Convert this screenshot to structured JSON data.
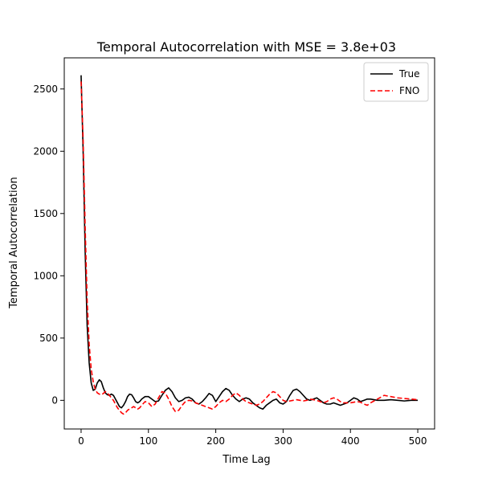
{
  "chart_data": {
    "type": "line",
    "title": "Temporal Autocorrelation with MSE = 3.8e+03",
    "xlabel": "Time Lag",
    "ylabel": "Temporal Autocorrelation",
    "xlim": [
      -25,
      525
    ],
    "ylim": [
      -230,
      2750
    ],
    "xticks": [
      0,
      100,
      200,
      300,
      400,
      500
    ],
    "yticks": [
      0,
      500,
      1000,
      1500,
      2000,
      2500
    ],
    "grid": false,
    "legend_position": "top-right",
    "series": [
      {
        "name": "True",
        "color": "#000000",
        "dash": "solid",
        "x": [
          0,
          3,
          6,
          9,
          12,
          15,
          18,
          21,
          24,
          27,
          30,
          33,
          36,
          39,
          42,
          45,
          48,
          51,
          54,
          57,
          60,
          63,
          66,
          69,
          72,
          75,
          78,
          81,
          84,
          87,
          90,
          95,
          100,
          105,
          110,
          115,
          120,
          125,
          130,
          135,
          140,
          145,
          150,
          155,
          160,
          165,
          170,
          175,
          180,
          185,
          190,
          195,
          200,
          205,
          210,
          215,
          220,
          225,
          230,
          235,
          240,
          245,
          250,
          255,
          260,
          265,
          270,
          275,
          280,
          285,
          290,
          295,
          300,
          305,
          310,
          315,
          320,
          325,
          330,
          335,
          340,
          345,
          350,
          355,
          360,
          365,
          370,
          375,
          380,
          385,
          390,
          395,
          400,
          405,
          410,
          415,
          420,
          425,
          430,
          440,
          450,
          460,
          470,
          480,
          490,
          500
        ],
        "y": [
          2610,
          2000,
          1200,
          600,
          300,
          140,
          80,
          90,
          140,
          165,
          150,
          100,
          60,
          45,
          40,
          50,
          40,
          10,
          -20,
          -50,
          -60,
          -40,
          -10,
          30,
          50,
          45,
          20,
          -10,
          -20,
          -10,
          10,
          30,
          30,
          10,
          -10,
          -5,
          40,
          80,
          100,
          70,
          20,
          -10,
          0,
          20,
          25,
          10,
          -20,
          -30,
          -10,
          20,
          55,
          40,
          -10,
          30,
          70,
          95,
          80,
          40,
          10,
          -10,
          10,
          20,
          10,
          -20,
          -40,
          -60,
          -70,
          -40,
          -20,
          0,
          10,
          -20,
          -30,
          -10,
          40,
          80,
          90,
          70,
          40,
          10,
          0,
          10,
          20,
          0,
          -20,
          -30,
          -30,
          -20,
          -30,
          -40,
          -30,
          -20,
          0,
          20,
          10,
          -10,
          0,
          10,
          10,
          0,
          0,
          5,
          0,
          -5,
          0,
          0
        ]
      },
      {
        "name": "FNO",
        "color": "#ff0000",
        "dash": "dashed",
        "x": [
          0,
          3,
          6,
          9,
          12,
          15,
          18,
          21,
          24,
          27,
          30,
          33,
          36,
          39,
          42,
          45,
          48,
          51,
          54,
          57,
          60,
          63,
          66,
          69,
          72,
          75,
          78,
          81,
          84,
          87,
          90,
          95,
          100,
          105,
          110,
          115,
          120,
          125,
          130,
          135,
          140,
          145,
          150,
          155,
          160,
          165,
          170,
          175,
          180,
          185,
          190,
          195,
          200,
          205,
          210,
          215,
          220,
          225,
          230,
          235,
          240,
          245,
          250,
          255,
          260,
          265,
          270,
          275,
          280,
          285,
          290,
          295,
          300,
          305,
          310,
          315,
          320,
          325,
          330,
          335,
          340,
          345,
          350,
          355,
          360,
          365,
          370,
          375,
          380,
          385,
          390,
          395,
          400,
          405,
          410,
          415,
          420,
          425,
          430,
          440,
          450,
          460,
          470,
          480,
          490,
          500
        ],
        "y": [
          2560,
          2100,
          1400,
          800,
          450,
          250,
          150,
          90,
          60,
          50,
          45,
          55,
          70,
          60,
          40,
          20,
          0,
          -30,
          -60,
          -80,
          -100,
          -110,
          -100,
          -80,
          -70,
          -60,
          -50,
          -60,
          -70,
          -60,
          -40,
          -10,
          -20,
          -50,
          -30,
          20,
          70,
          60,
          10,
          -50,
          -90,
          -80,
          -40,
          -10,
          0,
          -5,
          -20,
          -30,
          -40,
          -50,
          -60,
          -70,
          -50,
          -20,
          0,
          -10,
          10,
          40,
          60,
          40,
          10,
          -10,
          -20,
          -30,
          -40,
          -30,
          -10,
          20,
          50,
          70,
          60,
          30,
          0,
          -10,
          -5,
          0,
          5,
          0,
          -5,
          0,
          10,
          5,
          0,
          -10,
          -20,
          -10,
          10,
          20,
          10,
          -10,
          -20,
          -20,
          -20,
          -15,
          -10,
          -15,
          -30,
          -40,
          -20,
          10,
          40,
          30,
          20,
          15,
          10,
          5
        ]
      }
    ]
  }
}
